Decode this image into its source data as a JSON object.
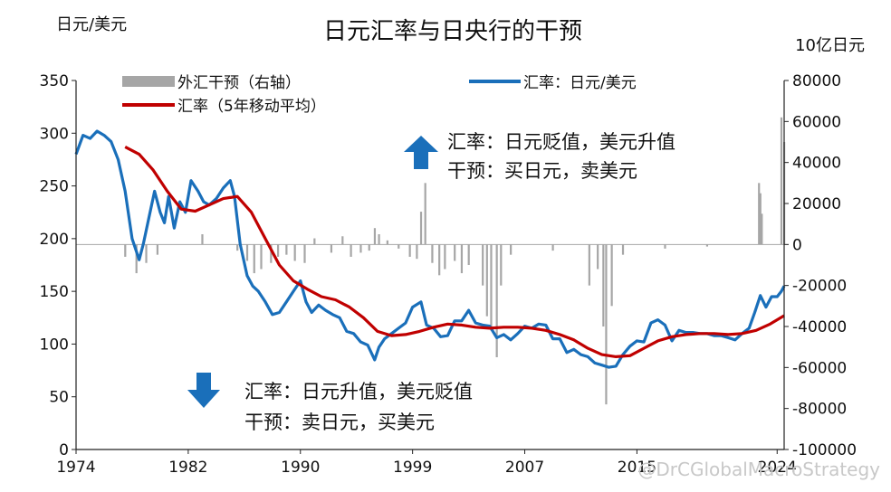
{
  "chart_data": {
    "type": "line",
    "title": "日元汇率与日央行的干预",
    "left_axis": {
      "label": "日元/美元",
      "range": [
        0,
        350
      ],
      "ticks": [
        0,
        50,
        100,
        150,
        200,
        250,
        300,
        350
      ]
    },
    "right_axis": {
      "label": "10亿日元",
      "range": [
        -100000,
        80000
      ],
      "ticks": [
        -100000,
        -80000,
        -60000,
        -40000,
        -20000,
        0,
        20000,
        40000,
        60000,
        80000
      ]
    },
    "x_axis": {
      "range": [
        1974,
        2024.5
      ],
      "tick_labels": [
        "1974",
        "1982",
        "1990",
        "1999",
        "2007",
        "2015",
        "2024"
      ],
      "tick_positions": [
        1974,
        1982,
        1990,
        1998,
        2006,
        2014,
        2024
      ]
    },
    "legend": [
      {
        "name": "外汇干预（右轴）",
        "color": "#a6a6a6",
        "kind": "bar"
      },
      {
        "name": "汇率：日元/美元",
        "color": "#1a6fba",
        "kind": "line"
      },
      {
        "name": "汇率（5年移动平均）",
        "color": "#c00000",
        "kind": "line"
      }
    ],
    "series": [
      {
        "name": "汇率：日元/美元",
        "axis": "left",
        "color": "#1a6fba",
        "x": [
          1974.0,
          1974.5,
          1975.0,
          1975.5,
          1976.0,
          1976.5,
          1977.0,
          1977.5,
          1978.0,
          1978.5,
          1978.8,
          1979.2,
          1979.6,
          1980.0,
          1980.3,
          1980.6,
          1981.0,
          1981.4,
          1981.8,
          1982.2,
          1982.7,
          1983.1,
          1983.5,
          1984.0,
          1984.5,
          1985.0,
          1985.3,
          1985.7,
          1986.2,
          1986.6,
          1987.0,
          1987.5,
          1988.0,
          1988.5,
          1989.0,
          1989.5,
          1990.0,
          1990.4,
          1990.8,
          1991.3,
          1991.8,
          1992.3,
          1992.8,
          1993.3,
          1993.8,
          1994.3,
          1994.8,
          1995.3,
          1995.6,
          1996.0,
          1996.5,
          1997.0,
          1997.5,
          1998.0,
          1998.6,
          1999.0,
          1999.5,
          2000.0,
          2000.5,
          2001.0,
          2001.5,
          2002.0,
          2002.5,
          2003.0,
          2003.5,
          2004.0,
          2004.5,
          2005.0,
          2005.5,
          2006.0,
          2006.5,
          2007.0,
          2007.5,
          2008.0,
          2008.5,
          2009.0,
          2009.5,
          2010.0,
          2010.5,
          2011.0,
          2011.5,
          2012.0,
          2012.5,
          2013.0,
          2013.5,
          2014.0,
          2014.5,
          2015.0,
          2015.5,
          2016.0,
          2016.5,
          2017.0,
          2017.5,
          2018.0,
          2018.5,
          2019.0,
          2019.5,
          2020.0,
          2020.5,
          2021.0,
          2021.5,
          2022.0,
          2022.4,
          2022.8,
          2023.2,
          2023.6,
          2024.0,
          2024.3,
          2024.5
        ],
        "values": [
          280,
          298,
          295,
          302,
          298,
          292,
          275,
          245,
          200,
          180,
          195,
          220,
          245,
          225,
          215,
          240,
          210,
          235,
          225,
          255,
          245,
          235,
          232,
          238,
          248,
          255,
          240,
          195,
          165,
          155,
          150,
          140,
          128,
          130,
          140,
          150,
          160,
          140,
          130,
          137,
          132,
          128,
          125,
          112,
          110,
          102,
          99,
          85,
          97,
          105,
          110,
          115,
          120,
          135,
          140,
          118,
          115,
          107,
          108,
          122,
          122,
          132,
          120,
          118,
          117,
          106,
          109,
          104,
          110,
          117,
          115,
          119,
          118,
          105,
          105,
          92,
          95,
          90,
          88,
          82,
          80,
          78,
          79,
          90,
          98,
          103,
          102,
          120,
          123,
          118,
          103,
          113,
          111,
          111,
          110,
          110,
          108,
          108,
          106,
          104,
          110,
          115,
          130,
          146,
          135,
          145,
          145,
          150,
          155
        ]
      },
      {
        "name": "汇率（5年移动平均）",
        "axis": "left",
        "color": "#c00000",
        "x": [
          1977.5,
          1978.5,
          1979.5,
          1980.5,
          1981.5,
          1982.5,
          1983.5,
          1984.5,
          1985.5,
          1986.5,
          1987.5,
          1988.5,
          1989.5,
          1990.5,
          1991.5,
          1992.5,
          1993.5,
          1994.5,
          1995.5,
          1996.5,
          1997.5,
          1998.5,
          1999.5,
          2000.5,
          2001.5,
          2002.5,
          2003.5,
          2004.5,
          2005.5,
          2006.5,
          2007.5,
          2008.5,
          2009.5,
          2010.5,
          2011.5,
          2012.5,
          2013.5,
          2014.5,
          2015.5,
          2016.5,
          2017.5,
          2018.5,
          2019.5,
          2020.5,
          2021.5,
          2022.5,
          2023.5,
          2024.5
        ],
        "values": [
          287,
          280,
          265,
          245,
          228,
          226,
          232,
          238,
          240,
          225,
          200,
          175,
          160,
          152,
          145,
          142,
          135,
          125,
          112,
          108,
          109,
          112,
          116,
          119,
          118,
          116,
          115,
          116,
          116,
          115,
          113,
          109,
          104,
          96,
          90,
          88,
          89,
          96,
          103,
          107,
          109,
          110,
          110,
          109,
          110,
          113,
          119,
          127
        ]
      },
      {
        "name": "外汇干预（右轴）",
        "axis": "right",
        "kind": "bar",
        "color": "#a6a6a6",
        "x": [
          1977.5,
          1978.3,
          1979.0,
          1979.8,
          1983.0,
          1985.5,
          1986.2,
          1986.7,
          1987.2,
          1987.9,
          1988.4,
          1989.0,
          1989.6,
          1990.3,
          1991.0,
          1992.2,
          1993.0,
          1993.6,
          1994.3,
          1994.9,
          1995.3,
          1995.6,
          1996.2,
          1997.0,
          1997.8,
          1998.3,
          1998.6,
          1998.9,
          1999.4,
          1999.9,
          2000.3,
          2001.0,
          2001.5,
          2002.0,
          2003.0,
          2003.3,
          2003.6,
          2004.0,
          2004.3,
          2005.0,
          2008.0,
          2010.6,
          2011.2,
          2011.6,
          2011.8,
          2012.2,
          2013.0,
          2016.0,
          2019.0,
          2022.7,
          2022.8,
          2022.9,
          2024.3,
          2024.5
        ],
        "values": [
          -6000,
          -14000,
          -9000,
          -5000,
          5000,
          -3000,
          -8000,
          -14000,
          -12000,
          -9000,
          -6000,
          -5000,
          -8000,
          -9000,
          3000,
          -4000,
          4000,
          -6000,
          -4000,
          -3000,
          8000,
          5000,
          2000,
          -2000,
          -6000,
          -7000,
          16000,
          30000,
          -9000,
          -15000,
          -12000,
          -8000,
          -14000,
          -10000,
          -20000,
          -35000,
          -42000,
          -55000,
          -20000,
          -5000,
          -3000,
          -20000,
          -12000,
          -40000,
          -78000,
          -30000,
          -5000,
          -2000,
          -1000,
          30000,
          25000,
          15000,
          62000,
          50000
        ]
      }
    ],
    "annotations": [
      {
        "arrow": "up",
        "lines": [
          "汇率：日元贬值，美元升值",
          "干预：买日元，卖美元"
        ]
      },
      {
        "arrow": "down",
        "lines": [
          "汇率：日元升值，美元贬值",
          "干预：卖日元，买美元"
        ]
      }
    ]
  },
  "watermark": "@DrCGlobalMacroStrategy"
}
